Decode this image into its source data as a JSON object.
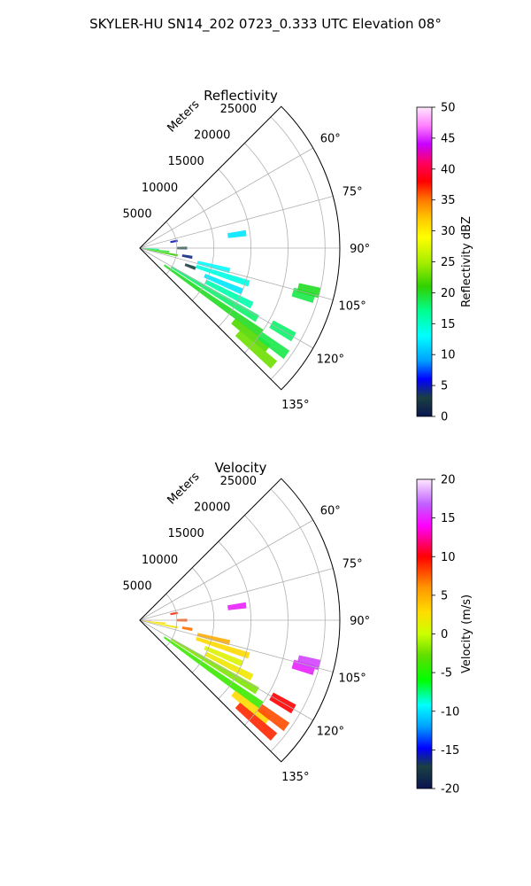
{
  "figure": {
    "title": "SKYLER-HU  SN14_202  0723_0.333 UTC Elevation 08°"
  },
  "chart_data": [
    {
      "type": "heatmap",
      "subtype": "polar-sector",
      "title": "Reflectivity",
      "radial_label": "Meters",
      "radial_ticks": [
        5000,
        10000,
        15000,
        20000,
        25000
      ],
      "radial_ticks_text": [
        "5000",
        "10000",
        "15000",
        "20000",
        "25000"
      ],
      "rmax": 27000,
      "theta_range_deg": [
        45,
        135
      ],
      "theta_ticks_deg": [
        60,
        75,
        90,
        105,
        120,
        135
      ],
      "theta_ticks_text": [
        "60°",
        "75°",
        "90°",
        "105°",
        "120°",
        "135°"
      ],
      "grid": true,
      "colorbar": {
        "label": "Reflectivity dBZ",
        "min": 0,
        "max": 50,
        "ticks_text": [
          "0",
          "5",
          "10",
          "15",
          "20",
          "25",
          "30",
          "35",
          "40",
          "45",
          "50"
        ]
      },
      "echoes": [
        {
          "az": 94,
          "r0": 100,
          "r1": 2600,
          "value": 16
        },
        {
          "az": 97,
          "r0": 100,
          "r1": 4000,
          "value": 20
        },
        {
          "az": 101,
          "r0": 100,
          "r1": 5200,
          "value": 21
        },
        {
          "az": 79,
          "r0": 4200,
          "r1": 5200,
          "value": 5
        },
        {
          "az": 90,
          "r0": 5000,
          "r1": 6400,
          "value": 3
        },
        {
          "az": 100,
          "r0": 5800,
          "r1": 7200,
          "value": 4
        },
        {
          "az": 110,
          "r0": 6500,
          "r1": 8000,
          "value": 3
        },
        {
          "az": 104,
          "r0": 8000,
          "r1": 12500,
          "value": 13
        },
        {
          "az": 108,
          "r0": 8000,
          "r1": 15500,
          "value": 14
        },
        {
          "az": 113,
          "r0": 9500,
          "r1": 15000,
          "value": 12
        },
        {
          "az": 117,
          "r0": 10000,
          "r1": 17000,
          "value": 16
        },
        {
          "az": 121,
          "r0": 5000,
          "r1": 18500,
          "value": 18
        },
        {
          "az": 125,
          "r0": 4000,
          "r1": 20000,
          "value": 20
        },
        {
          "az": 128,
          "r0": 16000,
          "r1": 22000,
          "value": 22
        },
        {
          "az": 131,
          "r0": 17500,
          "r1": 24000,
          "value": 23
        },
        {
          "az": 126,
          "r0": 20000,
          "r1": 24500,
          "value": 19
        },
        {
          "az": 120,
          "r0": 20500,
          "r1": 24000,
          "value": 18
        },
        {
          "az": 106,
          "r0": 21500,
          "r1": 24500,
          "value": 19
        },
        {
          "az": 104,
          "r0": 22000,
          "r1": 25000,
          "value": 20
        },
        {
          "az": 82,
          "r0": 12000,
          "r1": 14500,
          "value": 12
        }
      ]
    },
    {
      "type": "heatmap",
      "subtype": "polar-sector",
      "title": "Velocity",
      "radial_label": "Meters",
      "radial_ticks": [
        5000,
        10000,
        15000,
        20000,
        25000
      ],
      "radial_ticks_text": [
        "5000",
        "10000",
        "15000",
        "20000",
        "25000"
      ],
      "rmax": 27000,
      "theta_range_deg": [
        45,
        135
      ],
      "theta_ticks_deg": [
        60,
        75,
        90,
        105,
        120,
        135
      ],
      "theta_ticks_text": [
        "60°",
        "75°",
        "90°",
        "105°",
        "120°",
        "135°"
      ],
      "grid": true,
      "colorbar": {
        "label": "Velocity (m/s)",
        "min": -20,
        "max": 20,
        "ticks_text": [
          "-20",
          "-15",
          "-10",
          "-5",
          "0",
          "5",
          "10",
          "15",
          "20"
        ]
      },
      "echoes": [
        {
          "az": 92,
          "r0": 100,
          "r1": 1500,
          "value": 16
        },
        {
          "az": 97,
          "r0": 100,
          "r1": 3500,
          "value": 3
        },
        {
          "az": 101,
          "r0": 100,
          "r1": 5200,
          "value": 2
        },
        {
          "az": 79,
          "r0": 4200,
          "r1": 5200,
          "value": 9
        },
        {
          "az": 90,
          "r0": 5000,
          "r1": 6400,
          "value": 8
        },
        {
          "az": 100,
          "r0": 5800,
          "r1": 7200,
          "value": 7
        },
        {
          "az": 104,
          "r0": 8000,
          "r1": 12500,
          "value": 5
        },
        {
          "az": 108,
          "r0": 8000,
          "r1": 15500,
          "value": 3
        },
        {
          "az": 113,
          "r0": 9500,
          "r1": 15000,
          "value": 1
        },
        {
          "az": 117,
          "r0": 10000,
          "r1": 17000,
          "value": 2
        },
        {
          "az": 121,
          "r0": 5000,
          "r1": 18500,
          "value": -2
        },
        {
          "az": 125,
          "r0": 4000,
          "r1": 20000,
          "value": -4
        },
        {
          "az": 128,
          "r0": 16000,
          "r1": 22000,
          "value": 3
        },
        {
          "az": 131,
          "r0": 17500,
          "r1": 24000,
          "value": 9
        },
        {
          "az": 126,
          "r0": 20000,
          "r1": 24500,
          "value": 8
        },
        {
          "az": 120,
          "r0": 20500,
          "r1": 24000,
          "value": 10
        },
        {
          "az": 106,
          "r0": 21500,
          "r1": 24500,
          "value": 15
        },
        {
          "az": 104,
          "r0": 22000,
          "r1": 25000,
          "value": 16
        },
        {
          "az": 82,
          "r0": 12000,
          "r1": 14500,
          "value": 15
        }
      ]
    }
  ]
}
